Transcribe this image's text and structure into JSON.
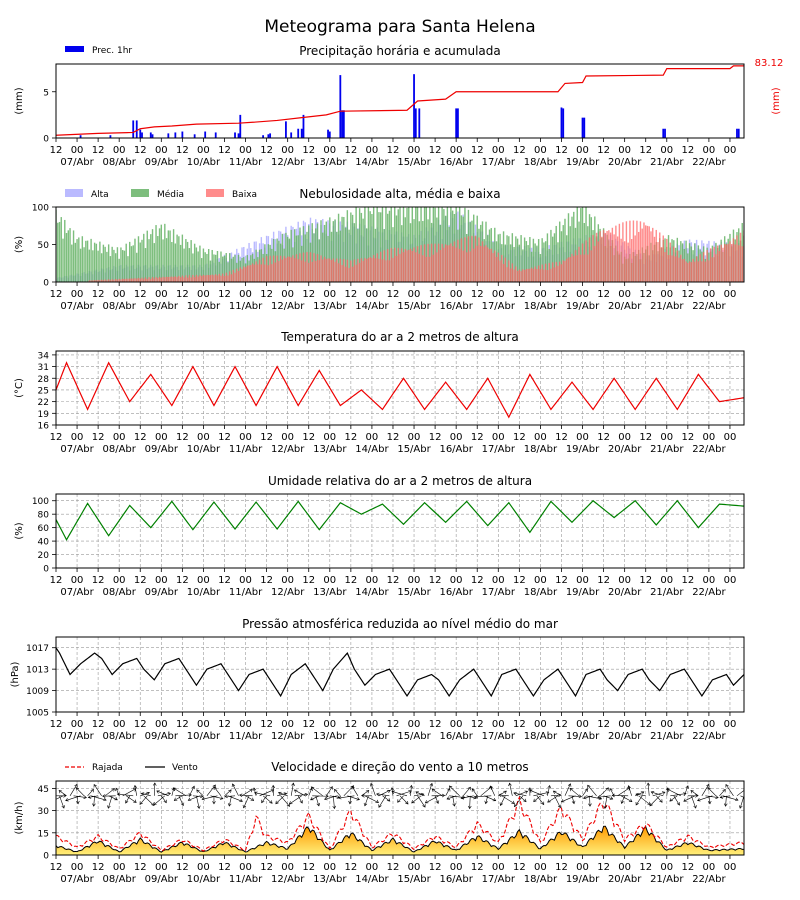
{
  "title": "Meteograma para Santa Helena",
  "time_axis": {
    "hour_ticks": [
      "12",
      "00",
      "12",
      "00",
      "12",
      "00",
      "12",
      "00",
      "12",
      "00",
      "12",
      "00",
      "12",
      "00",
      "12",
      "00",
      "12",
      "00",
      "12",
      "00",
      "12",
      "00",
      "12",
      "00",
      "12",
      "00",
      "12",
      "00",
      "12",
      "00",
      "12",
      "00",
      "00"
    ],
    "date_labels": [
      "07/Abr",
      "08/Abr",
      "09/Abr",
      "10/Abr",
      "11/Abr",
      "12/Abr",
      "13/Abr",
      "14/Abr",
      "15/Abr",
      "16/Abr",
      "17/Abr",
      "18/Abr",
      "19/Abr",
      "20/Abr",
      "21/Abr",
      "22/Abr"
    ],
    "start": "2025-04-06T12:00",
    "end": "2025-04-22T20:00"
  },
  "colors": {
    "precip": "#0000ee",
    "accum": "#ee0000",
    "alta": "#b3b3ff",
    "media": "#66b366",
    "baixa": "#ff6666",
    "temp": "#ee0000",
    "humidity": "#008000",
    "pressure": "#000000",
    "gust": "#ee0000",
    "wind": "#000000",
    "wind_fill_top": "#ff9900",
    "wind_fill_bottom": "#fff07a"
  },
  "chart_data": [
    {
      "type": "bar",
      "title": "Precipitação horária e acumulada",
      "ylabel": "(mm)",
      "y2label": "(mm)",
      "ylim": [
        0,
        8
      ],
      "yticks": [
        0,
        5
      ],
      "legend": [
        {
          "name": "Prec. 1hr"
        }
      ],
      "accumulated_max_label": "83.12",
      "series": [
        {
          "name": "Prec. 1hr",
          "type": "bar",
          "x": [
            "2025-04-07T02:00",
            "2025-04-07T19:00",
            "2025-04-08T08:00",
            "2025-04-08T10:00",
            "2025-04-08T12:00",
            "2025-04-08T13:00",
            "2025-04-08T18:00",
            "2025-04-08T19:00",
            "2025-04-09T04:00",
            "2025-04-09T08:00",
            "2025-04-09T12:00",
            "2025-04-09T19:00",
            "2025-04-10T01:00",
            "2025-04-10T07:00",
            "2025-04-10T18:00",
            "2025-04-10T20:00",
            "2025-04-10T21:00",
            "2025-04-11T10:00",
            "2025-04-11T13:00",
            "2025-04-11T14:00",
            "2025-04-11T23:00",
            "2025-04-12T02:00",
            "2025-04-12T06:00",
            "2025-04-12T08:00",
            "2025-04-12T09:00",
            "2025-04-12T23:00",
            "2025-04-13T00:00",
            "2025-04-13T06:00",
            "2025-04-13T07:00",
            "2025-04-13T08:00",
            "2025-04-15T00:00",
            "2025-04-15T01:00",
            "2025-04-15T03:00",
            "2025-04-16T00:00",
            "2025-04-16T01:00",
            "2025-04-18T12:00",
            "2025-04-18T13:00",
            "2025-04-19T00:00",
            "2025-04-19T01:00",
            "2025-04-20T22:00",
            "2025-04-20T23:00",
            "2025-04-22T16:00",
            "2025-04-22T17:00"
          ],
          "values": [
            0.3,
            0.3,
            1.9,
            1.9,
            0.9,
            0.6,
            0.6,
            0.4,
            0.5,
            0.6,
            0.7,
            0.4,
            0.7,
            0.6,
            0.6,
            0.5,
            2.5,
            0.3,
            0.4,
            0.5,
            1.8,
            0.6,
            1.0,
            1.0,
            2.5,
            0.9,
            0.7,
            6.8,
            3.0,
            3.0,
            6.9,
            3.2,
            3.2,
            3.2,
            3.2,
            3.3,
            3.2,
            2.2,
            2.2,
            1.0,
            1.0,
            1.0,
            1.0
          ]
        },
        {
          "name": "Acumulada",
          "type": "line",
          "x": [
            "2025-04-06T12:00",
            "2025-04-07T12:00",
            "2025-04-08T08:00",
            "2025-04-08T12:00",
            "2025-04-08T20:00",
            "2025-04-09T06:00",
            "2025-04-09T20:00",
            "2025-04-10T20:00",
            "2025-04-11T04:00",
            "2025-04-11T18:00",
            "2025-04-12T08:00",
            "2025-04-12T22:00",
            "2025-04-13T06:00",
            "2025-04-14T20:00",
            "2025-04-15T02:00",
            "2025-04-15T18:00",
            "2025-04-16T00:00",
            "2025-04-18T10:00",
            "2025-04-18T14:00",
            "2025-04-19T00:00",
            "2025-04-19T02:00",
            "2025-04-20T22:00",
            "2025-04-21T00:00",
            "2025-04-22T12:00",
            "2025-04-22T14:00",
            "2025-04-22T20:00"
          ],
          "values": [
            0.3,
            0.5,
            0.6,
            1.0,
            1.2,
            1.3,
            1.5,
            1.6,
            1.7,
            1.9,
            2.2,
            2.5,
            2.9,
            3.0,
            4.0,
            4.2,
            5.0,
            5.0,
            5.9,
            6.0,
            6.7,
            6.8,
            7.5,
            7.5,
            7.8,
            7.8
          ]
        }
      ]
    },
    {
      "type": "bar",
      "title": "Nebulosidade alta, média e baixa",
      "ylabel": "(%)",
      "ylim": [
        0,
        100
      ],
      "yticks": [
        0,
        50,
        100
      ],
      "legend": [
        {
          "name": "Alta"
        },
        {
          "name": "Média"
        },
        {
          "name": "Baixa"
        }
      ],
      "series_names": [
        "Alta",
        "Média",
        "Baixa"
      ],
      "profiles": {
        "Alta": {
          "x": [
            "2025-04-06T12:00",
            "2025-04-08T00:00",
            "2025-04-10T00:00",
            "2025-04-11T12:00",
            "2025-04-12T12:00",
            "2025-04-13T12:00",
            "2025-04-15T00:00",
            "2025-04-16T00:00",
            "2025-04-17T00:00",
            "2025-04-18T00:00",
            "2025-04-19T12:00",
            "2025-04-20T12:00",
            "2025-04-21T12:00",
            "2025-04-22T20:00"
          ],
          "values": [
            5,
            20,
            20,
            55,
            75,
            70,
            55,
            85,
            45,
            40,
            60,
            30,
            50,
            45
          ]
        },
        "Média": {
          "x": [
            "2025-04-06T12:00",
            "2025-04-07T00:00",
            "2025-04-08T00:00",
            "2025-04-09T00:00",
            "2025-04-10T00:00",
            "2025-04-11T00:00",
            "2025-04-12T00:00",
            "2025-04-13T00:00",
            "2025-04-14T00:00",
            "2025-04-15T00:00",
            "2025-04-16T00:00",
            "2025-04-17T00:00",
            "2025-04-18T00:00",
            "2025-04-19T00:00",
            "2025-04-20T00:00",
            "2025-04-21T00:00",
            "2025-04-22T00:00",
            "2025-04-22T20:00"
          ],
          "values": [
            85,
            55,
            40,
            70,
            40,
            30,
            60,
            75,
            95,
            95,
            95,
            60,
            50,
            95,
            30,
            55,
            40,
            70
          ]
        },
        "Baixa": {
          "x": [
            "2025-04-06T12:00",
            "2025-04-10T12:00",
            "2025-04-11T12:00",
            "2025-04-12T12:00",
            "2025-04-13T12:00",
            "2025-04-14T12:00",
            "2025-04-15T12:00",
            "2025-04-16T12:00",
            "2025-04-17T12:00",
            "2025-04-18T12:00",
            "2025-04-19T12:00",
            "2025-04-20T12:00",
            "2025-04-21T12:00",
            "2025-04-22T20:00"
          ],
          "values": [
            0,
            10,
            30,
            35,
            25,
            40,
            45,
            55,
            15,
            25,
            65,
            75,
            25,
            60
          ]
        }
      }
    },
    {
      "type": "line",
      "title": "Temperatura do ar a 2 metros de altura",
      "ylabel": "(°C)",
      "ylim": [
        16,
        35
      ],
      "yticks": [
        16,
        19,
        22,
        25,
        28,
        31,
        34
      ],
      "series": [
        {
          "type": "line",
          "x": [
            "2025-04-06T12:00",
            "2025-04-06T18:00",
            "2025-04-07T06:00",
            "2025-04-07T18:00",
            "2025-04-08T06:00",
            "2025-04-08T18:00",
            "2025-04-09T06:00",
            "2025-04-09T18:00",
            "2025-04-10T06:00",
            "2025-04-10T18:00",
            "2025-04-11T06:00",
            "2025-04-11T18:00",
            "2025-04-12T06:00",
            "2025-04-12T18:00",
            "2025-04-13T06:00",
            "2025-04-13T18:00",
            "2025-04-14T06:00",
            "2025-04-14T18:00",
            "2025-04-15T06:00",
            "2025-04-15T18:00",
            "2025-04-16T06:00",
            "2025-04-16T18:00",
            "2025-04-17T06:00",
            "2025-04-17T18:00",
            "2025-04-18T06:00",
            "2025-04-18T18:00",
            "2025-04-19T06:00",
            "2025-04-19T18:00",
            "2025-04-20T06:00",
            "2025-04-20T18:00",
            "2025-04-21T06:00",
            "2025-04-21T18:00",
            "2025-04-22T06:00",
            "2025-04-22T20:00"
          ],
          "values": [
            25,
            32,
            20,
            32,
            22,
            29,
            21,
            31,
            21,
            31,
            21,
            31,
            21,
            30,
            21,
            25,
            20,
            28,
            20,
            27,
            20,
            28,
            18,
            29,
            20,
            27,
            20,
            28,
            20,
            28,
            20,
            29,
            22,
            23
          ]
        }
      ]
    },
    {
      "type": "line",
      "title": "Umidade relativa do ar a 2 metros de altura",
      "ylabel": "(%)",
      "ylim": [
        0,
        110
      ],
      "yticks": [
        0,
        20,
        40,
        60,
        80,
        100
      ],
      "series": [
        {
          "type": "line",
          "x": [
            "2025-04-06T12:00",
            "2025-04-06T18:00",
            "2025-04-07T06:00",
            "2025-04-07T18:00",
            "2025-04-08T06:00",
            "2025-04-08T18:00",
            "2025-04-09T06:00",
            "2025-04-09T18:00",
            "2025-04-10T06:00",
            "2025-04-10T18:00",
            "2025-04-11T06:00",
            "2025-04-11T18:00",
            "2025-04-12T06:00",
            "2025-04-12T18:00",
            "2025-04-13T06:00",
            "2025-04-13T18:00",
            "2025-04-14T06:00",
            "2025-04-14T18:00",
            "2025-04-15T06:00",
            "2025-04-15T18:00",
            "2025-04-16T06:00",
            "2025-04-16T18:00",
            "2025-04-17T06:00",
            "2025-04-17T18:00",
            "2025-04-18T06:00",
            "2025-04-18T18:00",
            "2025-04-19T06:00",
            "2025-04-19T18:00",
            "2025-04-20T06:00",
            "2025-04-20T18:00",
            "2025-04-21T06:00",
            "2025-04-21T18:00",
            "2025-04-22T06:00",
            "2025-04-22T20:00"
          ],
          "values": [
            72,
            42,
            96,
            48,
            93,
            60,
            99,
            57,
            98,
            58,
            98,
            58,
            99,
            57,
            97,
            80,
            95,
            65,
            97,
            68,
            99,
            63,
            97,
            53,
            99,
            68,
            100,
            75,
            100,
            64,
            100,
            60,
            95,
            92
          ]
        }
      ]
    },
    {
      "type": "line",
      "title": "Pressão atmosférica reduzida ao nível médio do mar",
      "ylabel": "(hPa)",
      "ylim": [
        1005,
        1019
      ],
      "yticks": [
        1005,
        1009,
        1013,
        1017
      ],
      "series": [
        {
          "type": "line",
          "x": [
            "2025-04-06T12:00",
            "2025-04-06T14:00",
            "2025-04-06T20:00",
            "2025-04-07T02:00",
            "2025-04-07T10:00",
            "2025-04-07T14:00",
            "2025-04-07T20:00",
            "2025-04-08T02:00",
            "2025-04-08T10:00",
            "2025-04-08T14:00",
            "2025-04-08T20:00",
            "2025-04-09T02:00",
            "2025-04-09T10:00",
            "2025-04-09T14:00",
            "2025-04-09T20:00",
            "2025-04-10T02:00",
            "2025-04-10T10:00",
            "2025-04-10T14:00",
            "2025-04-10T20:00",
            "2025-04-11T02:00",
            "2025-04-11T10:00",
            "2025-04-11T14:00",
            "2025-04-11T20:00",
            "2025-04-12T02:00",
            "2025-04-12T10:00",
            "2025-04-12T14:00",
            "2025-04-12T20:00",
            "2025-04-13T02:00",
            "2025-04-13T10:00",
            "2025-04-13T14:00",
            "2025-04-13T20:00",
            "2025-04-14T02:00",
            "2025-04-14T10:00",
            "2025-04-14T14:00",
            "2025-04-14T20:00",
            "2025-04-15T02:00",
            "2025-04-15T10:00",
            "2025-04-15T14:00",
            "2025-04-15T20:00",
            "2025-04-16T02:00",
            "2025-04-16T10:00",
            "2025-04-16T14:00",
            "2025-04-16T20:00",
            "2025-04-17T02:00",
            "2025-04-17T10:00",
            "2025-04-17T14:00",
            "2025-04-17T20:00",
            "2025-04-18T02:00",
            "2025-04-18T10:00",
            "2025-04-18T14:00",
            "2025-04-18T20:00",
            "2025-04-19T02:00",
            "2025-04-19T10:00",
            "2025-04-19T14:00",
            "2025-04-19T20:00",
            "2025-04-20T02:00",
            "2025-04-20T10:00",
            "2025-04-20T14:00",
            "2025-04-20T20:00",
            "2025-04-21T02:00",
            "2025-04-21T10:00",
            "2025-04-21T14:00",
            "2025-04-21T20:00",
            "2025-04-22T02:00",
            "2025-04-22T10:00",
            "2025-04-22T14:00",
            "2025-04-22T20:00"
          ],
          "values": [
            1017,
            1016,
            1012,
            1014,
            1016,
            1015,
            1012,
            1014,
            1015,
            1013,
            1011,
            1014,
            1015,
            1013,
            1010,
            1013,
            1014,
            1012,
            1009,
            1012,
            1013,
            1011,
            1008,
            1012,
            1014,
            1012,
            1009,
            1013,
            1016,
            1013,
            1010,
            1012,
            1013,
            1011,
            1008,
            1011,
            1012,
            1011,
            1008,
            1011,
            1013,
            1011,
            1008,
            1012,
            1013,
            1011,
            1008,
            1011,
            1013,
            1011,
            1008,
            1012,
            1013,
            1011,
            1009,
            1012,
            1013,
            1011,
            1009,
            1012,
            1013,
            1011,
            1008,
            1011,
            1012,
            1010,
            1012
          ]
        }
      ]
    },
    {
      "type": "area",
      "title": "Velocidade e direção do vento a 10 metros",
      "ylabel": "(km/h)",
      "ylim": [
        0,
        50
      ],
      "yticks": [
        0,
        15,
        30,
        45
      ],
      "legend": [
        {
          "name": "Rajada"
        },
        {
          "name": "Vento"
        }
      ],
      "series": [
        {
          "name": "Rajada",
          "type": "line",
          "x": [
            "2025-04-06T12:00",
            "2025-04-07T00:00",
            "2025-04-07T12:00",
            "2025-04-08T00:00",
            "2025-04-08T12:00",
            "2025-04-09T00:00",
            "2025-04-09T12:00",
            "2025-04-10T00:00",
            "2025-04-10T12:00",
            "2025-04-11T00:00",
            "2025-04-11T06:00",
            "2025-04-11T12:00",
            "2025-04-12T00:00",
            "2025-04-12T12:00",
            "2025-04-13T00:00",
            "2025-04-13T12:00",
            "2025-04-14T00:00",
            "2025-04-14T12:00",
            "2025-04-15T00:00",
            "2025-04-15T12:00",
            "2025-04-16T00:00",
            "2025-04-16T12:00",
            "2025-04-17T00:00",
            "2025-04-17T12:00",
            "2025-04-18T00:00",
            "2025-04-18T12:00",
            "2025-04-19T00:00",
            "2025-04-19T12:00",
            "2025-04-20T00:00",
            "2025-04-20T12:00",
            "2025-04-21T00:00",
            "2025-04-21T12:00",
            "2025-04-22T00:00",
            "2025-04-22T20:00"
          ],
          "values": [
            12,
            5,
            12,
            4,
            14,
            3,
            10,
            3,
            10,
            3,
            24,
            12,
            8,
            25,
            4,
            28,
            5,
            14,
            4,
            12,
            5,
            20,
            8,
            34,
            8,
            30,
            10,
            35,
            10,
            20,
            5,
            12,
            5,
            8
          ]
        },
        {
          "name": "Vento",
          "type": "area",
          "x": [
            "2025-04-06T12:00",
            "2025-04-07T00:00",
            "2025-04-07T12:00",
            "2025-04-08T00:00",
            "2025-04-08T12:00",
            "2025-04-09T00:00",
            "2025-04-09T12:00",
            "2025-04-10T00:00",
            "2025-04-10T12:00",
            "2025-04-11T00:00",
            "2025-04-11T06:00",
            "2025-04-11T12:00",
            "2025-04-12T00:00",
            "2025-04-12T12:00",
            "2025-04-13T00:00",
            "2025-04-13T12:00",
            "2025-04-14T00:00",
            "2025-04-14T12:00",
            "2025-04-15T00:00",
            "2025-04-15T12:00",
            "2025-04-16T00:00",
            "2025-04-16T12:00",
            "2025-04-17T00:00",
            "2025-04-17T12:00",
            "2025-04-18T00:00",
            "2025-04-18T12:00",
            "2025-04-19T00:00",
            "2025-04-19T12:00",
            "2025-04-20T00:00",
            "2025-04-20T12:00",
            "2025-04-21T00:00",
            "2025-04-21T12:00",
            "2025-04-22T00:00",
            "2025-04-22T20:00"
          ],
          "values": [
            6,
            2,
            9,
            2,
            10,
            2,
            8,
            2,
            8,
            2,
            5,
            8,
            4,
            18,
            3,
            14,
            3,
            10,
            2,
            9,
            3,
            12,
            4,
            15,
            4,
            15,
            5,
            18,
            5,
            17,
            3,
            8,
            3,
            4
          ]
        }
      ],
      "arrow_y": 40
    }
  ]
}
